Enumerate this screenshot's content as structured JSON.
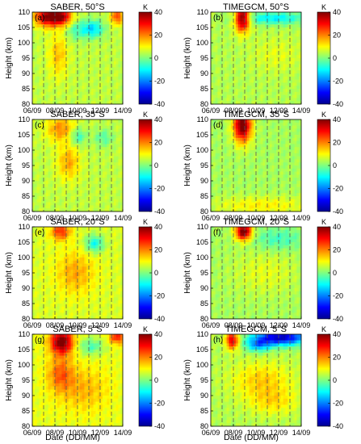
{
  "figure": {
    "xlabel": "Date (DD/MM)"
  },
  "colors": {
    "vline": "#555555",
    "background": "#ffffff"
  },
  "colorbar": {
    "unit": "K",
    "range": [
      -40,
      40
    ],
    "ticks": [
      40,
      20,
      0,
      -20,
      -40
    ],
    "stops": [
      "#00008f",
      "#0000ff",
      "#0080ff",
      "#00ffff",
      "#80ff80",
      "#ffff00",
      "#ff8000",
      "#ff0000",
      "#800000"
    ]
  },
  "chart_data": [
    {
      "type": "heatmap",
      "label": "(a)",
      "title": "SABER, 50°S",
      "ylabel": "Height (km)",
      "ylim": [
        80,
        110
      ],
      "yticks": [
        80,
        85,
        90,
        95,
        100,
        105,
        110
      ],
      "xlim": [
        "06/09",
        "14/09"
      ],
      "xticks": [
        "06/09",
        "08/09",
        "10/09",
        "12/09",
        "14/09"
      ],
      "background_value": 5,
      "dashed_lines_day": [
        7,
        8,
        9,
        10,
        11,
        12,
        13
      ],
      "features": [
        {
          "day": 7.4,
          "h": 108.5,
          "sd": 0.8,
          "sh": 2.2,
          "value": 35
        },
        {
          "day": 8.7,
          "h": 108.5,
          "sd": 0.6,
          "sh": 2.0,
          "value": 25
        },
        {
          "day": 13.5,
          "h": 108.5,
          "sd": 0.4,
          "sh": 1.8,
          "value": 20
        },
        {
          "day": 11.3,
          "h": 104.5,
          "sd": 0.7,
          "sh": 2.0,
          "value": -18
        },
        {
          "day": 9.8,
          "h": 104.0,
          "sd": 0.6,
          "sh": 2.2,
          "value": -8
        },
        {
          "day": 8.3,
          "h": 96.0,
          "sd": 0.6,
          "sh": 5.0,
          "value": 10
        }
      ]
    },
    {
      "type": "heatmap",
      "label": "(b)",
      "title": "TIMEGCM, 50°S",
      "ylabel": "Height (km)",
      "ylim": [
        80,
        110
      ],
      "yticks": [
        80,
        85,
        90,
        95,
        100,
        105,
        110
      ],
      "xlim": [
        "06/09",
        "14/09"
      ],
      "xticks": [
        "06/09",
        "08/09",
        "10/09",
        "12/09",
        "14/09"
      ],
      "background_value": 4,
      "dashed_lines_day": [
        7,
        8,
        9,
        10,
        11,
        12,
        13
      ],
      "features": [
        {
          "day": 8.8,
          "h": 108.0,
          "sd": 0.45,
          "sh": 3.0,
          "value": 40
        },
        {
          "day": 11.6,
          "h": 108.0,
          "sd": 2.0,
          "sh": 1.4,
          "value": -15
        },
        {
          "day": 11.8,
          "h": 96.0,
          "sd": 1.5,
          "sh": 4.0,
          "value": 4
        }
      ]
    },
    {
      "type": "heatmap",
      "label": "(c)",
      "title": "SABER, 35°S",
      "ylabel": "Height (km)",
      "ylim": [
        80,
        110
      ],
      "yticks": [
        80,
        85,
        90,
        95,
        100,
        105,
        110
      ],
      "xlim": [
        "06/09",
        "14/09"
      ],
      "xticks": [
        "06/09",
        "08/09",
        "10/09",
        "12/09",
        "14/09"
      ],
      "background_value": 5,
      "dashed_lines_day": [
        7,
        8,
        9,
        10,
        11,
        12,
        13
      ],
      "features": [
        {
          "day": 8.5,
          "h": 107.0,
          "sd": 0.9,
          "sh": 3.0,
          "value": 14
        },
        {
          "day": 10.0,
          "h": 104.5,
          "sd": 0.5,
          "sh": 2.0,
          "value": -12
        },
        {
          "day": 12.3,
          "h": 104.0,
          "sd": 0.6,
          "sh": 2.0,
          "value": -8
        },
        {
          "day": 9.2,
          "h": 96.0,
          "sd": 0.7,
          "sh": 4.0,
          "value": 12
        }
      ]
    },
    {
      "type": "heatmap",
      "label": "(d)",
      "title": "TIMEGCM, 35°S",
      "ylabel": "Height (km)",
      "ylim": [
        80,
        110
      ],
      "yticks": [
        80,
        85,
        90,
        95,
        100,
        105,
        110
      ],
      "xlim": [
        "06/09",
        "14/09"
      ],
      "xticks": [
        "06/09",
        "08/09",
        "10/09",
        "12/09",
        "14/09"
      ],
      "background_value": 3,
      "dashed_lines_day": [
        7,
        8,
        9,
        10,
        11,
        12,
        13
      ],
      "features": [
        {
          "day": 8.8,
          "h": 108.0,
          "sd": 0.55,
          "sh": 3.8,
          "value": 40
        },
        {
          "day": 10.5,
          "h": 82.0,
          "sd": 3.0,
          "sh": 2.0,
          "value": 8
        }
      ]
    },
    {
      "type": "heatmap",
      "label": "(e)",
      "title": "SABER, 20°S",
      "ylabel": "Height (km)",
      "ylim": [
        80,
        110
      ],
      "yticks": [
        80,
        85,
        90,
        95,
        100,
        105,
        110
      ],
      "xlim": [
        "06/09",
        "14/09"
      ],
      "xticks": [
        "06/09",
        "08/09",
        "10/09",
        "12/09",
        "14/09"
      ],
      "background_value": 7,
      "dashed_lines_day": [
        7,
        8,
        9,
        10,
        11,
        12,
        13
      ],
      "features": [
        {
          "day": 8.5,
          "h": 108.5,
          "sd": 0.6,
          "sh": 2.0,
          "value": 20
        },
        {
          "day": 11.5,
          "h": 104.5,
          "sd": 0.6,
          "sh": 2.0,
          "value": -16
        },
        {
          "day": 9.8,
          "h": 95.0,
          "sd": 1.2,
          "sh": 5.0,
          "value": 10
        }
      ]
    },
    {
      "type": "heatmap",
      "label": "(f)",
      "title": "TIMEGCM, 20°S",
      "ylabel": "Height (km)",
      "ylim": [
        80,
        110
      ],
      "yticks": [
        80,
        85,
        90,
        95,
        100,
        105,
        110
      ],
      "xlim": [
        "06/09",
        "14/09"
      ],
      "xticks": [
        "06/09",
        "08/09",
        "10/09",
        "12/09",
        "14/09"
      ],
      "background_value": 3,
      "dashed_lines_day": [
        7,
        8,
        9,
        10,
        11,
        12,
        13
      ],
      "features": [
        {
          "day": 8.9,
          "h": 108.5,
          "sd": 0.5,
          "sh": 2.0,
          "value": 40
        },
        {
          "day": 12.0,
          "h": 106.0,
          "sd": 1.5,
          "sh": 2.5,
          "value": -8
        },
        {
          "day": 10.8,
          "h": 95.0,
          "sd": 2.0,
          "sh": 5.0,
          "value": 5
        }
      ]
    },
    {
      "type": "heatmap",
      "label": "(g)",
      "title": "SABER, 5°S",
      "ylabel": "Height (km)",
      "ylim": [
        80,
        110
      ],
      "yticks": [
        80,
        85,
        90,
        95,
        100,
        105,
        110
      ],
      "xlim": [
        "06/09",
        "14/09"
      ],
      "xticks": [
        "06/09",
        "08/09",
        "10/09",
        "12/09",
        "14/09"
      ],
      "background_value": 8,
      "dashed_lines_day": [
        7,
        8,
        9,
        10,
        11,
        12,
        13
      ],
      "features": [
        {
          "day": 8.6,
          "h": 107.5,
          "sd": 0.7,
          "sh": 2.8,
          "value": 35
        },
        {
          "day": 11.2,
          "h": 106.0,
          "sd": 0.8,
          "sh": 2.0,
          "value": -12
        },
        {
          "day": 13.5,
          "h": 109.0,
          "sd": 0.5,
          "sh": 1.5,
          "value": 20
        },
        {
          "day": 8.5,
          "h": 97.0,
          "sd": 0.8,
          "sh": 4.0,
          "value": 14
        },
        {
          "day": 10.5,
          "h": 92.0,
          "sd": 1.5,
          "sh": 5.0,
          "value": 8
        }
      ]
    },
    {
      "type": "heatmap",
      "label": "(h)",
      "title": "TIMEGCM, 5°S",
      "ylabel": "Height (km)",
      "ylim": [
        80,
        110
      ],
      "yticks": [
        80,
        85,
        90,
        95,
        100,
        105,
        110
      ],
      "xlim": [
        "06/09",
        "14/09"
      ],
      "xticks": [
        "06/09",
        "08/09",
        "10/09",
        "12/09",
        "14/09"
      ],
      "background_value": 4,
      "dashed_lines_day": [
        7,
        8,
        9,
        10,
        11,
        12,
        13
      ],
      "features": [
        {
          "day": 7.9,
          "h": 108.0,
          "sd": 0.4,
          "sh": 2.0,
          "value": 30
        },
        {
          "day": 12.2,
          "h": 109.0,
          "sd": 1.6,
          "sh": 1.8,
          "value": -40
        },
        {
          "day": 10.2,
          "h": 106.5,
          "sd": 0.8,
          "sh": 1.5,
          "value": -20
        },
        {
          "day": 10.5,
          "h": 95.0,
          "sd": 1.8,
          "sh": 4.0,
          "value": 10
        },
        {
          "day": 11.5,
          "h": 88.0,
          "sd": 1.5,
          "sh": 3.0,
          "value": 8
        }
      ]
    }
  ]
}
